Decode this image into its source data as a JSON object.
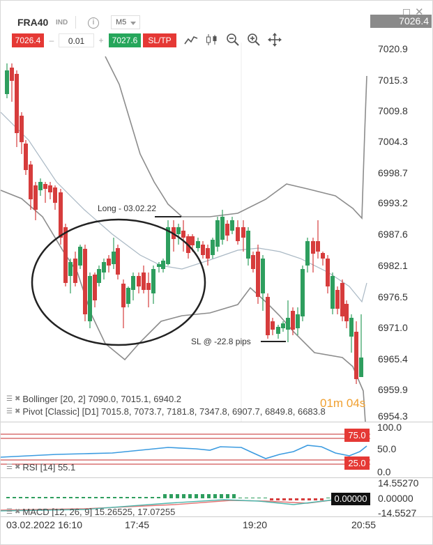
{
  "header": {
    "symbol": "FRA40",
    "type_badge": "IND",
    "timeframe": "M5",
    "current_price": "7026.4"
  },
  "trade": {
    "sell_price": "7026.4",
    "lot": "0.01",
    "buy_price": "7027.6",
    "sltp_label": "SL/TP",
    "minus": "–",
    "plus": "+"
  },
  "icons": [
    "info-icon",
    "line-chart-icon",
    "candlestick-icon",
    "zoom-out-icon",
    "zoom-in-icon",
    "crosshair-icon",
    "maximize-icon",
    "close-icon"
  ],
  "price_axis": [
    "7020.9",
    "7015.3",
    "7009.8",
    "7004.3",
    "6998.7",
    "6993.2",
    "6987.6",
    "6982.1",
    "6976.5",
    "6971.0",
    "6965.4",
    "6959.9",
    "6954.3"
  ],
  "annotations": {
    "long": "Long - 03.02.22",
    "sl": "SL @ -22.8 pips"
  },
  "countdown": {
    "minutes": "01",
    "m": "m",
    "seconds": "04",
    "s": "s"
  },
  "indicators": {
    "bollinger": "Bollinger [20, 2] 7090.0, 7015.1, 6940.2",
    "pivot": "Pivot [Classic] [D1] 7015.8, 7073.7, 7181.8, 7347.8, 6907.7, 6849.8, 6683.8",
    "rsi": "RSI [14] 55.1",
    "macd": "MACD [12, 26, 9] 15.26525, 17.07255"
  },
  "rsi_axis": {
    "top": "100.0",
    "mid": "50.0",
    "bottom": "0.0",
    "upper_level": "75.0",
    "lower_level": "25.0"
  },
  "macd_axis": {
    "top": "14.55270",
    "mid": "0.00000",
    "bottom": "-14.5527",
    "current": "0.00000"
  },
  "time_axis": [
    "03.02.2022 16:10",
    "17:45",
    "19:20",
    "20:55"
  ],
  "colors": {
    "up": "#2e9e5e",
    "down": "#d63c3c",
    "accent": "#e53935",
    "buy": "#26a65b"
  }
}
